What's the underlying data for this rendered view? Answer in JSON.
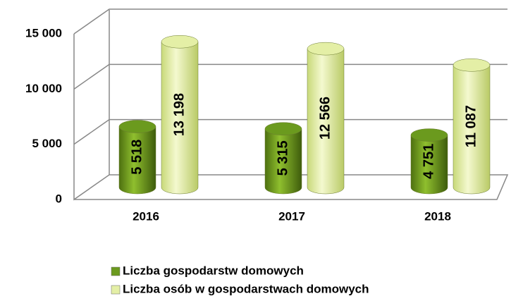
{
  "chart_data": {
    "type": "bar3d",
    "categories": [
      "2016",
      "2017",
      "2018"
    ],
    "series": [
      {
        "name": "Liczba gospodarstw domowych",
        "color": "#6b9a1e",
        "values": [
          5518,
          5315,
          4751
        ],
        "value_labels": [
          "5 518",
          "5 315",
          "4 751"
        ]
      },
      {
        "name": "Liczba osób w gospodarstwach domowych",
        "color": "#e4efa6",
        "values": [
          13198,
          12566,
          11087
        ],
        "value_labels": [
          "13 198",
          "12 566",
          "11 087"
        ]
      }
    ],
    "ylim": [
      0,
      15000
    ],
    "yticks": [
      0,
      {
        "value": 5000,
        "label": "5 000"
      },
      {
        "value": 10000,
        "label": "10 000"
      },
      {
        "value": 15000,
        "label": "15 000"
      }
    ],
    "grid": true,
    "legend": "bottom"
  }
}
